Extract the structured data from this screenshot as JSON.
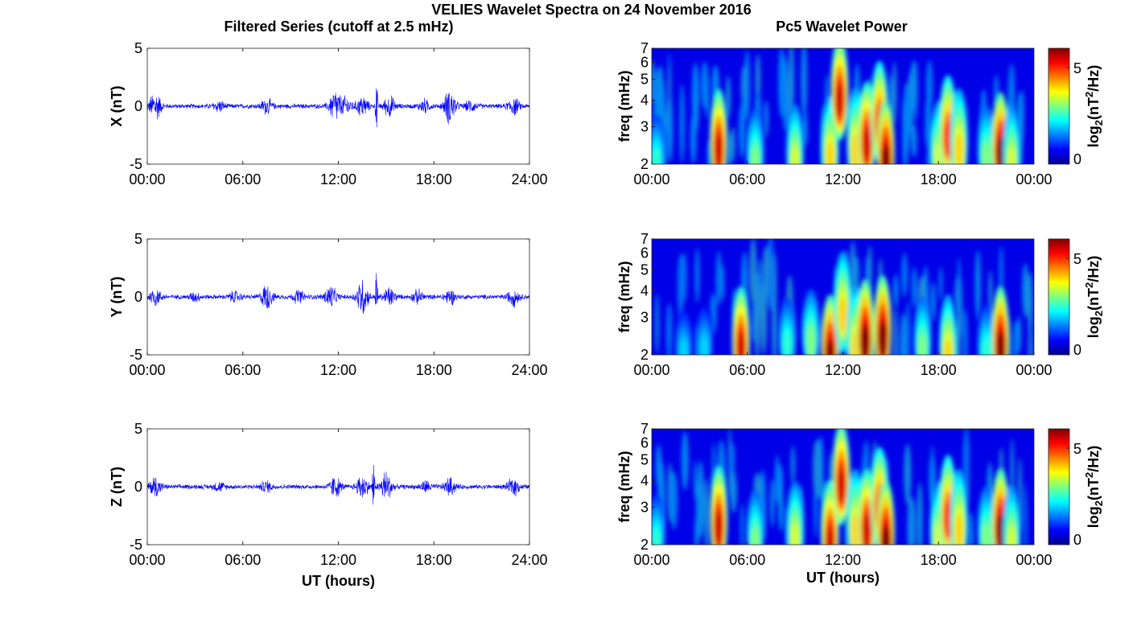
{
  "figure_title": "VELIES Wavelet Spectra on 24 November 2016",
  "left_title": "Filtered Series (cutoff at 2.5 mHz)",
  "right_title": "Pc5 Wavelet Power",
  "colors": {
    "trace": "#0000ff",
    "frame": "#222222"
  },
  "chart_data": [
    {
      "type": "line",
      "name_id": "x",
      "xlabel": "",
      "ylabel": "X (nT)",
      "ylim": [
        -5,
        5
      ],
      "yticks": [
        "5",
        "0",
        "-5"
      ],
      "xlim_hours": [
        0,
        24
      ],
      "xticks": [
        "00:00",
        "06:00",
        "12:00",
        "18:00",
        "24:00"
      ],
      "grid": false,
      "bursts": [
        {
          "t": 0.5,
          "amp": 1.5
        },
        {
          "t": 4.5,
          "amp": 0.5
        },
        {
          "t": 7.5,
          "amp": 0.7
        },
        {
          "t": 11.8,
          "amp": 1.6
        },
        {
          "t": 12.5,
          "amp": 0.8
        },
        {
          "t": 13.5,
          "amp": 1.0
        },
        {
          "t": 14.4,
          "amp": 3.7
        },
        {
          "t": 15.2,
          "amp": 1.0
        },
        {
          "t": 17.4,
          "amp": 0.6
        },
        {
          "t": 19.0,
          "amp": 1.7
        },
        {
          "t": 20.3,
          "amp": 0.5
        },
        {
          "t": 23.0,
          "amp": 0.8
        }
      ]
    },
    {
      "type": "line",
      "name_id": "y",
      "xlabel": "",
      "ylabel": "Y (nT)",
      "ylim": [
        -5,
        5
      ],
      "yticks": [
        "5",
        "0",
        "-5"
      ],
      "xlim_hours": [
        0,
        24
      ],
      "xticks": [
        "00:00",
        "06:00",
        "12:00",
        "18:00",
        "24:00"
      ],
      "grid": false,
      "bursts": [
        {
          "t": 0.5,
          "amp": 0.8
        },
        {
          "t": 3.0,
          "amp": 0.4
        },
        {
          "t": 5.5,
          "amp": 0.5
        },
        {
          "t": 7.5,
          "amp": 1.2
        },
        {
          "t": 9.5,
          "amp": 0.6
        },
        {
          "t": 11.5,
          "amp": 1.1
        },
        {
          "t": 13.5,
          "amp": 1.8
        },
        {
          "t": 14.4,
          "amp": 3.6
        },
        {
          "t": 15.2,
          "amp": 0.9
        },
        {
          "t": 17.0,
          "amp": 0.6
        },
        {
          "t": 19.0,
          "amp": 0.7
        },
        {
          "t": 23.0,
          "amp": 0.8
        }
      ]
    },
    {
      "type": "line",
      "name_id": "z",
      "xlabel": "UT (hours)",
      "ylabel": "Z (nT)",
      "ylim": [
        -5,
        5
      ],
      "yticks": [
        "5",
        "0",
        "-5"
      ],
      "xlim_hours": [
        0,
        24
      ],
      "xticks": [
        "00:00",
        "06:00",
        "12:00",
        "18:00",
        "24:00"
      ],
      "grid": false,
      "bursts": [
        {
          "t": 0.5,
          "amp": 1.0
        },
        {
          "t": 4.5,
          "amp": 0.4
        },
        {
          "t": 7.5,
          "amp": 0.5
        },
        {
          "t": 11.8,
          "amp": 1.0
        },
        {
          "t": 13.5,
          "amp": 1.2
        },
        {
          "t": 14.2,
          "amp": 3.8
        },
        {
          "t": 15.0,
          "amp": 1.5
        },
        {
          "t": 17.5,
          "amp": 0.5
        },
        {
          "t": 19.0,
          "amp": 0.8
        },
        {
          "t": 23.0,
          "amp": 0.8
        }
      ]
    },
    {
      "type": "heatmap",
      "name_id": "x-power",
      "xlabel": "",
      "ylabel": "freq (mHz)",
      "xlim_hours": [
        0,
        24
      ],
      "xticks": [
        "00:00",
        "06:00",
        "12:00",
        "18:00",
        "00:00"
      ],
      "ylim": [
        2,
        7
      ],
      "y_scale": "log",
      "yticks": [
        "7",
        "6",
        "5",
        "4",
        "3",
        "2"
      ],
      "colorbar": {
        "label": "log2(nT^2/Hz)",
        "label_base": "log",
        "label_sub": "2",
        "label_mid": "(nT",
        "label_sup": "2",
        "label_end": "/Hz)",
        "ticks": [
          "5",
          "0"
        ],
        "range": [
          0,
          6
        ]
      },
      "blobs": [
        {
          "t": 0.3,
          "f": 2.3,
          "p": 2.5
        },
        {
          "t": 4.2,
          "f": 2.6,
          "p": 5.5
        },
        {
          "t": 6.5,
          "f": 2.3,
          "p": 3.0
        },
        {
          "t": 9.0,
          "f": 2.3,
          "p": 3.5
        },
        {
          "t": 11.2,
          "f": 2.4,
          "p": 4.0
        },
        {
          "t": 11.8,
          "f": 4.5,
          "p": 5.5
        },
        {
          "t": 12.8,
          "f": 2.6,
          "p": 4.0
        },
        {
          "t": 13.5,
          "f": 2.8,
          "p": 5.5
        },
        {
          "t": 14.3,
          "f": 3.5,
          "p": 5.0
        },
        {
          "t": 14.7,
          "f": 2.3,
          "p": 6.0
        },
        {
          "t": 18.0,
          "f": 2.4,
          "p": 3.5
        },
        {
          "t": 18.6,
          "f": 3.0,
          "p": 5.0
        },
        {
          "t": 19.3,
          "f": 2.6,
          "p": 4.0
        },
        {
          "t": 21.0,
          "f": 2.4,
          "p": 3.0
        },
        {
          "t": 21.9,
          "f": 2.5,
          "p": 6.0
        },
        {
          "t": 22.6,
          "f": 2.3,
          "p": 3.5
        }
      ]
    },
    {
      "type": "heatmap",
      "name_id": "y-power",
      "xlabel": "",
      "ylabel": "freq (mHz)",
      "xlim_hours": [
        0,
        24
      ],
      "xticks": [
        "00:00",
        "06:00",
        "12:00",
        "18:00",
        "00:00"
      ],
      "ylim": [
        2,
        7
      ],
      "y_scale": "log",
      "yticks": [
        "7",
        "6",
        "5",
        "4",
        "3",
        "2"
      ],
      "colorbar": {
        "label": "log2(nT^2/Hz)",
        "label_base": "log",
        "label_sub": "2",
        "label_mid": "(nT",
        "label_sup": "2",
        "label_end": "/Hz)",
        "ticks": [
          "5",
          "0"
        ],
        "range": [
          0,
          6
        ]
      },
      "blobs": [
        {
          "t": 2.0,
          "f": 2.3,
          "p": 2.0
        },
        {
          "t": 3.3,
          "f": 2.4,
          "p": 2.0
        },
        {
          "t": 5.6,
          "f": 2.4,
          "p": 5.5
        },
        {
          "t": 8.5,
          "f": 2.5,
          "p": 2.5
        },
        {
          "t": 10.0,
          "f": 2.6,
          "p": 3.0
        },
        {
          "t": 11.2,
          "f": 2.2,
          "p": 6.0
        },
        {
          "t": 12.0,
          "f": 3.5,
          "p": 4.0
        },
        {
          "t": 12.8,
          "f": 2.4,
          "p": 4.0
        },
        {
          "t": 13.4,
          "f": 2.6,
          "p": 6.0
        },
        {
          "t": 14.5,
          "f": 2.7,
          "p": 6.0
        },
        {
          "t": 17.0,
          "f": 2.4,
          "p": 3.0
        },
        {
          "t": 18.6,
          "f": 2.2,
          "p": 4.0
        },
        {
          "t": 21.0,
          "f": 2.3,
          "p": 2.5
        },
        {
          "t": 21.9,
          "f": 2.4,
          "p": 6.0
        }
      ]
    },
    {
      "type": "heatmap",
      "name_id": "z-power",
      "xlabel": "UT (hours)",
      "ylabel": "freq (mHz)",
      "xlim_hours": [
        0,
        24
      ],
      "xticks": [
        "00:00",
        "06:00",
        "12:00",
        "18:00",
        "00:00"
      ],
      "ylim": [
        2,
        7
      ],
      "y_scale": "log",
      "yticks": [
        "7",
        "6",
        "5",
        "4",
        "3",
        "2"
      ],
      "colorbar": {
        "label": "log2(nT^2/Hz)",
        "label_base": "log",
        "label_sub": "2",
        "label_mid": "(nT",
        "label_sup": "2",
        "label_end": "/Hz)",
        "ticks": [
          "5",
          "0"
        ],
        "range": [
          0,
          6
        ]
      },
      "blobs": [
        {
          "t": 0.3,
          "f": 2.3,
          "p": 2.5
        },
        {
          "t": 4.2,
          "f": 2.7,
          "p": 5.5
        },
        {
          "t": 6.5,
          "f": 2.3,
          "p": 3.0
        },
        {
          "t": 9.0,
          "f": 2.4,
          "p": 3.5
        },
        {
          "t": 11.2,
          "f": 2.3,
          "p": 5.5
        },
        {
          "t": 11.9,
          "f": 4.3,
          "p": 5.5
        },
        {
          "t": 12.8,
          "f": 2.6,
          "p": 4.0
        },
        {
          "t": 13.5,
          "f": 2.6,
          "p": 5.5
        },
        {
          "t": 14.3,
          "f": 3.3,
          "p": 5.0
        },
        {
          "t": 14.7,
          "f": 2.3,
          "p": 6.0
        },
        {
          "t": 18.0,
          "f": 2.4,
          "p": 3.5
        },
        {
          "t": 18.6,
          "f": 3.0,
          "p": 5.0
        },
        {
          "t": 19.3,
          "f": 2.6,
          "p": 4.0
        },
        {
          "t": 21.0,
          "f": 2.4,
          "p": 3.0
        },
        {
          "t": 21.9,
          "f": 2.6,
          "p": 6.0
        },
        {
          "t": 22.6,
          "f": 2.3,
          "p": 3.5
        }
      ]
    }
  ]
}
